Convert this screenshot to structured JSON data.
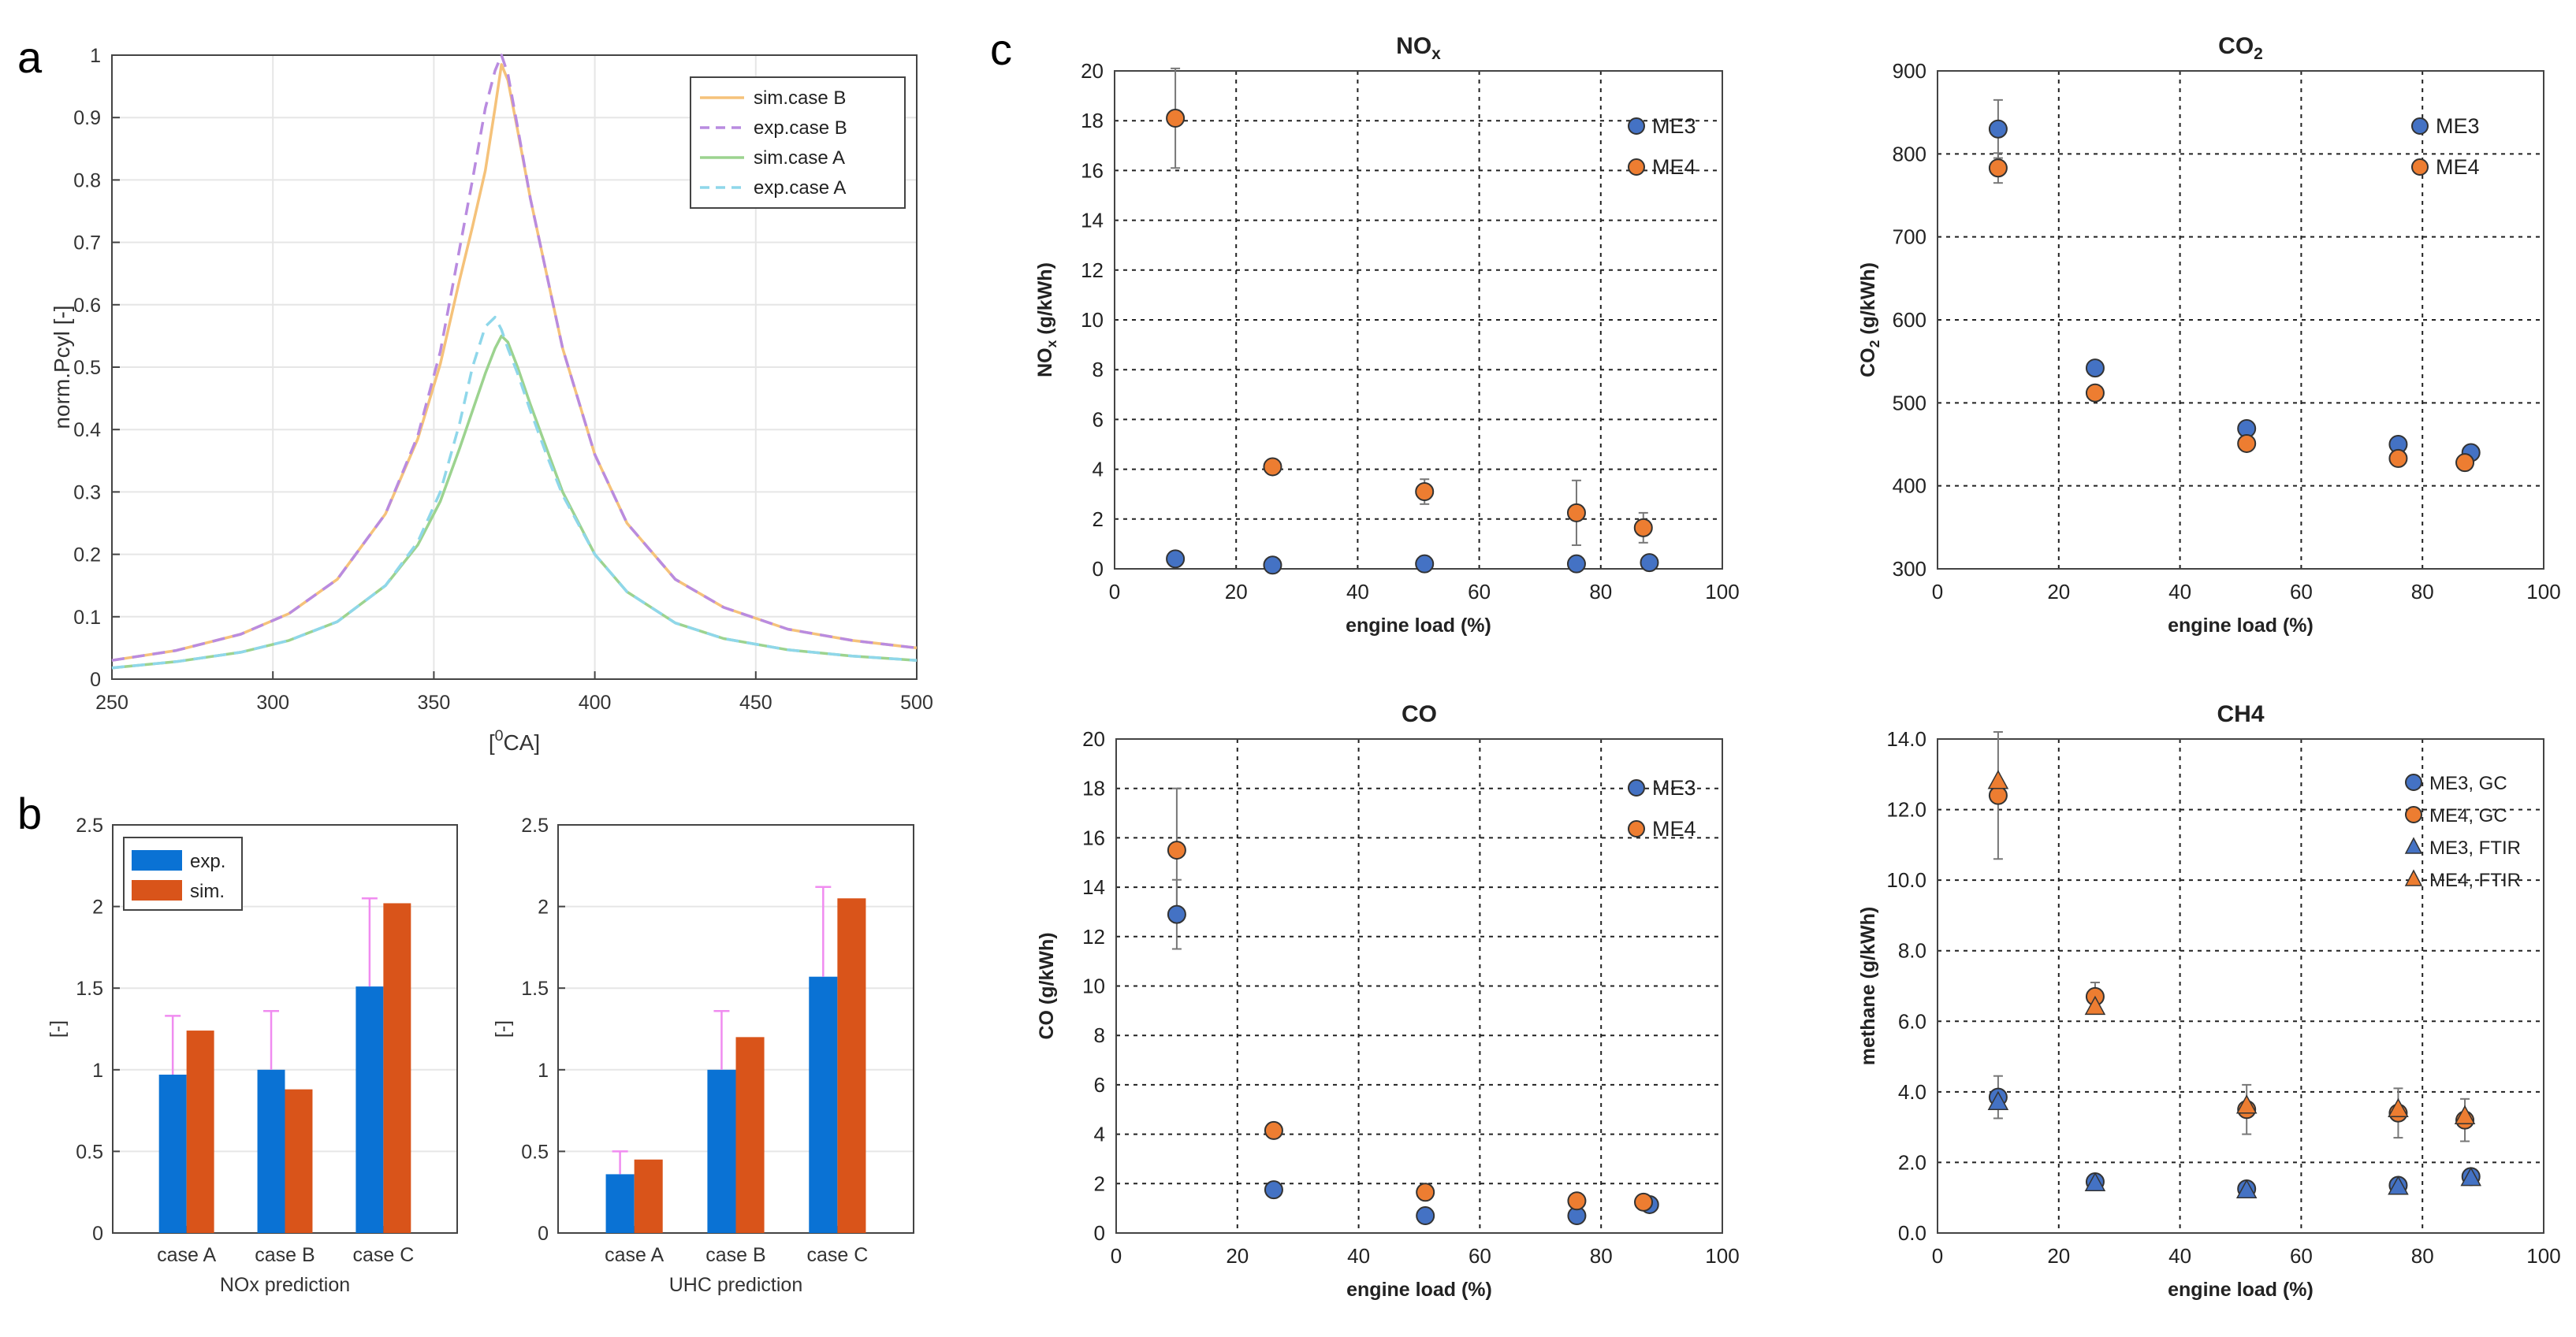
{
  "panel_labels": {
    "a": "a",
    "b": "b",
    "c": "c"
  },
  "chart_data": [
    {
      "id": "a",
      "type": "line",
      "xlabel": "[⁰CA]",
      "ylabel": "norm.Pcyl [-]",
      "xlim": [
        250,
        500
      ],
      "ylim": [
        0,
        1
      ],
      "xticks": [
        "250",
        "300",
        "350",
        "400",
        "450",
        "500"
      ],
      "yticks": [
        "0",
        "0.1",
        "0.2",
        "0.3",
        "0.4",
        "0.5",
        "0.6",
        "0.7",
        "0.8",
        "0.9",
        "1"
      ],
      "grid": true,
      "legend_position": "top-right",
      "series": [
        {
          "name": "sim.case B",
          "color": "#f5c27a",
          "dash": "solid",
          "x": [
            250,
            270,
            290,
            305,
            320,
            335,
            345,
            352,
            358,
            362,
            366,
            369,
            371,
            373,
            376,
            380,
            385,
            390,
            400,
            410,
            425,
            440,
            460,
            480,
            500
          ],
          "y": [
            0.03,
            0.046,
            0.072,
            0.105,
            0.16,
            0.265,
            0.385,
            0.505,
            0.64,
            0.725,
            0.815,
            0.915,
            0.985,
            0.96,
            0.88,
            0.77,
            0.65,
            0.53,
            0.36,
            0.25,
            0.16,
            0.115,
            0.08,
            0.062,
            0.05
          ]
        },
        {
          "name": "exp.case B",
          "color": "#b98be0",
          "dash": "dashed",
          "x": [
            250,
            270,
            290,
            305,
            320,
            335,
            345,
            352,
            358,
            362,
            366,
            369,
            371,
            373,
            376,
            380,
            385,
            390,
            400,
            410,
            425,
            440,
            460,
            480,
            500
          ],
          "y": [
            0.03,
            0.046,
            0.072,
            0.105,
            0.16,
            0.265,
            0.39,
            0.525,
            0.69,
            0.8,
            0.915,
            0.975,
            1.0,
            0.97,
            0.885,
            0.77,
            0.65,
            0.53,
            0.36,
            0.25,
            0.16,
            0.115,
            0.08,
            0.062,
            0.05
          ]
        },
        {
          "name": "sim.case A",
          "color": "#9cd38f",
          "dash": "solid",
          "x": [
            250,
            270,
            290,
            305,
            320,
            335,
            345,
            352,
            358,
            362,
            366,
            369,
            371,
            373,
            376,
            380,
            385,
            390,
            400,
            410,
            425,
            440,
            460,
            480,
            500
          ],
          "y": [
            0.018,
            0.028,
            0.043,
            0.062,
            0.092,
            0.15,
            0.215,
            0.285,
            0.37,
            0.43,
            0.49,
            0.53,
            0.55,
            0.54,
            0.5,
            0.44,
            0.37,
            0.3,
            0.2,
            0.14,
            0.09,
            0.065,
            0.047,
            0.037,
            0.03
          ]
        },
        {
          "name": "exp.case A",
          "color": "#8fd7ea",
          "dash": "dashed",
          "x": [
            250,
            270,
            290,
            305,
            320,
            335,
            345,
            352,
            358,
            362,
            366,
            369,
            371,
            373,
            376,
            380,
            385,
            390,
            400,
            410,
            425,
            440,
            460,
            480,
            500
          ],
          "y": [
            0.018,
            0.028,
            0.043,
            0.062,
            0.092,
            0.15,
            0.22,
            0.3,
            0.41,
            0.5,
            0.565,
            0.58,
            0.56,
            0.53,
            0.49,
            0.43,
            0.36,
            0.295,
            0.2,
            0.14,
            0.09,
            0.065,
            0.047,
            0.037,
            0.03
          ]
        }
      ]
    },
    {
      "id": "b1",
      "type": "bar",
      "xlabel": "NOx prediction",
      "ylabel": "[-]",
      "ylim": [
        0,
        2.5
      ],
      "yticks": [
        "0",
        "0.5",
        "1",
        "1.5",
        "2",
        "2.5"
      ],
      "categories": [
        "case A",
        "case B",
        "case C"
      ],
      "legend": [
        "exp.",
        "sim."
      ],
      "series": [
        {
          "name": "exp.",
          "color": "#0a72d4",
          "values": [
            0.97,
            1.0,
            1.51
          ],
          "err_upper": [
            0.36,
            0.36,
            0.54
          ]
        },
        {
          "name": "sim.",
          "color": "#d9541a",
          "values": [
            1.24,
            0.88,
            2.02
          ]
        }
      ]
    },
    {
      "id": "b2",
      "type": "bar",
      "xlabel": "UHC prediction",
      "ylabel": "[-]",
      "ylim": [
        0,
        2.5
      ],
      "yticks": [
        "0",
        "0.5",
        "1",
        "1.5",
        "2",
        "2.5"
      ],
      "categories": [
        "case A",
        "case B",
        "case C"
      ],
      "series": [
        {
          "name": "exp.",
          "color": "#0a72d4",
          "values": [
            0.36,
            1.0,
            1.57
          ],
          "err_upper": [
            0.14,
            0.36,
            0.55
          ]
        },
        {
          "name": "sim.",
          "color": "#d9541a",
          "values": [
            0.45,
            1.2,
            2.05
          ]
        }
      ]
    },
    {
      "id": "nox",
      "type": "scatter",
      "title": "NOx",
      "ylabel_main": "NOx",
      "ylabel_rest": "(g/kWh)",
      "xlabel": "engine load (%)",
      "xlim": [
        0,
        100
      ],
      "ylim": [
        0,
        20
      ],
      "xticks": [
        "0",
        "20",
        "40",
        "60",
        "80",
        "100"
      ],
      "yticks": [
        "0",
        "2",
        "4",
        "6",
        "8",
        "10",
        "12",
        "14",
        "16",
        "18",
        "20"
      ],
      "legend": [
        "ME3",
        "ME4"
      ],
      "series": [
        {
          "name": "ME3",
          "marker": "circle",
          "color": "#4472c4",
          "x": [
            10,
            26,
            51,
            76,
            88
          ],
          "y": [
            0.4,
            0.15,
            0.2,
            0.2,
            0.25
          ],
          "err": [
            0,
            0,
            0,
            0,
            0
          ]
        },
        {
          "name": "ME4",
          "marker": "circle",
          "color": "#ed7d31",
          "x": [
            10,
            26,
            51,
            76,
            87
          ],
          "y": [
            18.1,
            4.1,
            3.1,
            2.25,
            1.65
          ],
          "err": [
            2.0,
            0.3,
            0.5,
            1.3,
            0.6
          ]
        }
      ]
    },
    {
      "id": "co2",
      "type": "scatter",
      "title": "CO2",
      "ylabel_main": "CO2",
      "ylabel_rest": "(g/kWh)",
      "xlabel": "engine load (%)",
      "xlim": [
        0,
        100
      ],
      "ylim": [
        300,
        900
      ],
      "xticks": [
        "0",
        "20",
        "40",
        "60",
        "80",
        "100"
      ],
      "yticks": [
        "300",
        "400",
        "500",
        "600",
        "700",
        "800",
        "900"
      ],
      "legend": [
        "ME3",
        "ME4"
      ],
      "series": [
        {
          "name": "ME3",
          "marker": "circle",
          "color": "#4472c4",
          "x": [
            10,
            26,
            51,
            76,
            88
          ],
          "y": [
            830,
            542,
            469,
            450,
            440
          ],
          "err": [
            35,
            0,
            0,
            0,
            0
          ]
        },
        {
          "name": "ME4",
          "marker": "circle",
          "color": "#ed7d31",
          "x": [
            10,
            26,
            51,
            76,
            87
          ],
          "y": [
            783,
            512,
            451,
            433,
            428
          ],
          "err": [
            18,
            8,
            0,
            0,
            0
          ]
        }
      ]
    },
    {
      "id": "co",
      "type": "scatter",
      "title": "CO",
      "ylabel_main": "CO",
      "ylabel_rest": "(g/kWh)",
      "xlabel": "engine load (%)",
      "xlim": [
        0,
        100
      ],
      "ylim": [
        0,
        20
      ],
      "xticks": [
        "0",
        "20",
        "40",
        "60",
        "80",
        "100"
      ],
      "yticks": [
        "0",
        "2",
        "4",
        "6",
        "8",
        "10",
        "12",
        "14",
        "16",
        "18",
        "20"
      ],
      "legend": [
        "ME3",
        "ME4"
      ],
      "series": [
        {
          "name": "ME3",
          "marker": "circle",
          "color": "#4472c4",
          "x": [
            10,
            26,
            51,
            76,
            88
          ],
          "y": [
            12.9,
            1.75,
            0.7,
            0.7,
            1.15
          ],
          "err": [
            1.4,
            0,
            0,
            0,
            0
          ]
        },
        {
          "name": "ME4",
          "marker": "circle",
          "color": "#ed7d31",
          "x": [
            10,
            26,
            51,
            76,
            87
          ],
          "y": [
            15.5,
            4.15,
            1.65,
            1.3,
            1.25
          ],
          "err": [
            2.5,
            0,
            0,
            0,
            0
          ]
        }
      ]
    },
    {
      "id": "ch4",
      "type": "scatter",
      "title": "CH4",
      "ylabel_main": "methane (g/kWh)",
      "ylabel_rest": "",
      "xlabel": "engine load (%)",
      "xlim": [
        0,
        100
      ],
      "ylim": [
        0,
        14
      ],
      "xticks": [
        "0",
        "20",
        "40",
        "60",
        "80",
        "100"
      ],
      "yticks": [
        "0.0",
        "2.0",
        "4.0",
        "6.0",
        "8.0",
        "10.0",
        "12.0",
        "14.0"
      ],
      "legend": [
        "ME3, GC",
        "ME4, GC",
        "ME3, FTIR",
        "ME4, FTIR"
      ],
      "series": [
        {
          "name": "ME3, GC",
          "marker": "circle",
          "color": "#4472c4",
          "x": [
            10,
            26,
            51,
            76,
            88
          ],
          "y": [
            3.85,
            1.45,
            1.25,
            1.35,
            1.6
          ],
          "err": [
            0.6,
            0,
            0,
            0,
            0
          ]
        },
        {
          "name": "ME4, GC",
          "marker": "circle",
          "color": "#ed7d31",
          "x": [
            10,
            26,
            51,
            76,
            87
          ],
          "y": [
            12.4,
            6.7,
            3.5,
            3.4,
            3.2
          ],
          "err": [
            1.8,
            0.4,
            0.7,
            0.7,
            0.6
          ]
        },
        {
          "name": "ME3, FTIR",
          "marker": "triangle",
          "color": "#4472c4",
          "x": [
            10,
            26,
            51,
            76,
            88
          ],
          "y": [
            3.7,
            1.4,
            1.2,
            1.3,
            1.55
          ],
          "err": [
            0,
            0,
            0,
            0,
            0
          ]
        },
        {
          "name": "ME4, FTIR",
          "marker": "triangle",
          "color": "#ed7d31",
          "x": [
            10,
            26,
            51,
            76,
            87
          ],
          "y": [
            12.8,
            6.4,
            3.6,
            3.5,
            3.3
          ],
          "err": [
            0,
            0,
            0,
            0,
            0
          ]
        }
      ]
    }
  ]
}
